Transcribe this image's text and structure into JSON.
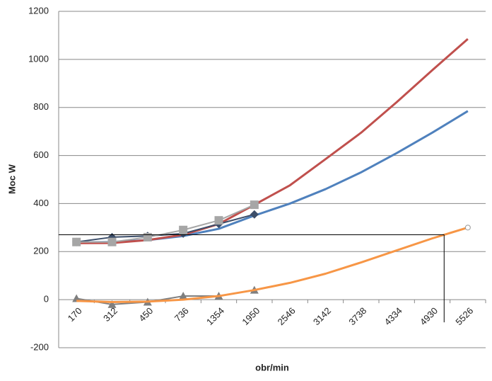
{
  "chart_data": {
    "type": "line",
    "x_label": "obr/min",
    "y_label": "Moc W",
    "categories": [
      "170",
      "312",
      "450",
      "736",
      "1354",
      "1950",
      "2546",
      "3142",
      "3738",
      "4334",
      "4930",
      "5526"
    ],
    "ylim": [
      -200,
      1200
    ],
    "yticks": [
      -200,
      0,
      200,
      400,
      600,
      800,
      1000,
      1200
    ],
    "grid": true,
    "reference_y": 270,
    "reference_series": 5,
    "series": [
      {
        "color": "#4f81bd",
        "values": [
          238,
          240,
          248,
          265,
          295,
          350,
          400,
          460,
          530,
          610,
          695,
          785
        ],
        "marker": "none",
        "width": 3
      },
      {
        "color": "#c0504d",
        "values": [
          235,
          236,
          248,
          270,
          315,
          395,
          476,
          585,
          695,
          822,
          955,
          1085
        ],
        "marker": "none",
        "width": 3
      },
      {
        "color": "#3c4e6a",
        "values": [
          240,
          260,
          265,
          275,
          315,
          355,
          null,
          null,
          null,
          null,
          null,
          null
        ],
        "marker": "diamond",
        "width": 2
      },
      {
        "color": "#a6a6a6",
        "values": [
          240,
          240,
          260,
          290,
          330,
          395,
          null,
          null,
          null,
          null,
          null,
          null
        ],
        "marker": "square",
        "width": 2
      },
      {
        "color": "#7f7f7f",
        "values": [
          5,
          -20,
          -10,
          15,
          15,
          40,
          null,
          null,
          null,
          null,
          null,
          null
        ],
        "marker": "triangle",
        "width": 2
      },
      {
        "color": "#f79646",
        "values": [
          -5,
          -10,
          -8,
          0,
          15,
          40,
          70,
          108,
          155,
          205,
          255,
          300
        ],
        "marker": "none",
        "width": 3,
        "end_marker": "circle"
      }
    ]
  }
}
